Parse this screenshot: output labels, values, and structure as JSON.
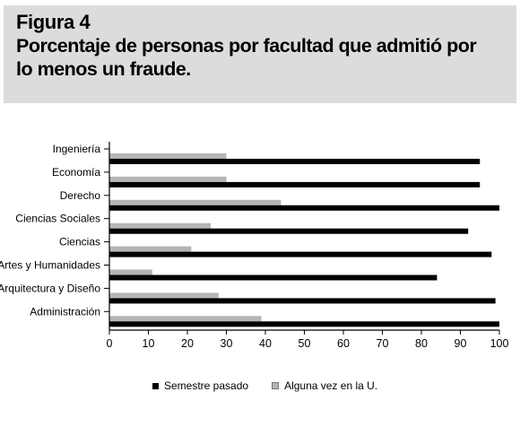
{
  "figure": {
    "label": "Figura 4",
    "title": "Porcentaje de personas por facultad que admitió por lo menos un fraude."
  },
  "colors": {
    "header_bg": "#dcdcdc",
    "series_dark": "#000000",
    "series_light": "#b5b5b5"
  },
  "chart_data": {
    "type": "bar",
    "orientation": "horizontal",
    "categories": [
      "Ingeniería",
      "Economía",
      "Derecho",
      "Ciencias Sociales",
      "Ciencias",
      "Artes y Humanidades",
      "Arquitectura y Diseño",
      "Administración"
    ],
    "series": [
      {
        "name": "Semestre pasado",
        "values": [
          95,
          95,
          100,
          92,
          98,
          84,
          99,
          100
        ]
      },
      {
        "name": "Alguna vez en la U.",
        "values": [
          30,
          30,
          44,
          26,
          21,
          11,
          28,
          39
        ]
      }
    ],
    "xlim": [
      0,
      100
    ],
    "xticks": [
      "0",
      "10",
      "20",
      "30",
      "40",
      "50",
      "60",
      "70",
      "80",
      "90",
      "100"
    ],
    "grid": false,
    "legend": "bottom"
  }
}
